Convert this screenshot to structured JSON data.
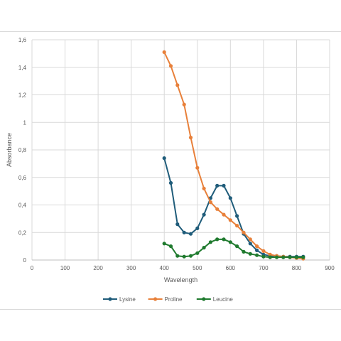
{
  "chart_data": {
    "type": "line",
    "title": "",
    "xlabel": "Wavelength",
    "ylabel": "Absorbance",
    "xlim": [
      0,
      900
    ],
    "ylim": [
      0,
      1.6
    ],
    "x_ticks": [
      "0",
      "100",
      "200",
      "300",
      "400",
      "500",
      "600",
      "700",
      "800",
      "900"
    ],
    "y_ticks": [
      "0",
      "0,2",
      "0,4",
      "0,6",
      "0,8",
      "1",
      "1,2",
      "1,4",
      "1,6"
    ],
    "grid": true,
    "legend_position": "bottom",
    "x": [
      400,
      420,
      440,
      460,
      480,
      500,
      520,
      540,
      560,
      580,
      600,
      620,
      640,
      660,
      680,
      700,
      720,
      740,
      760,
      780,
      800,
      820
    ],
    "series": [
      {
        "name": "Lysine",
        "color": "#1f5c7a",
        "values": [
          0.74,
          0.56,
          0.26,
          0.2,
          0.19,
          0.23,
          0.33,
          0.45,
          0.54,
          0.54,
          0.45,
          0.32,
          0.19,
          0.12,
          0.07,
          0.04,
          0.03,
          0.03,
          0.025,
          0.025,
          0.025,
          0.025
        ]
      },
      {
        "name": "Proline",
        "color": "#e8803a",
        "values": [
          1.51,
          1.41,
          1.27,
          1.13,
          0.89,
          0.67,
          0.52,
          0.42,
          0.37,
          0.33,
          0.29,
          0.25,
          0.2,
          0.15,
          0.1,
          0.065,
          0.04,
          0.03,
          0.025,
          0.02,
          0.015,
          0.01
        ]
      },
      {
        "name": "Leucine",
        "color": "#1f7a2e",
        "values": [
          0.12,
          0.1,
          0.03,
          0.025,
          0.03,
          0.05,
          0.09,
          0.13,
          0.15,
          0.15,
          0.13,
          0.1,
          0.06,
          0.045,
          0.035,
          0.025,
          0.02,
          0.02,
          0.02,
          0.02,
          0.02,
          0.02
        ]
      }
    ],
    "colors": {
      "gridline": "#d9d9d9",
      "axis": "#bfbfbf",
      "frame": "#d9d9d9"
    }
  }
}
